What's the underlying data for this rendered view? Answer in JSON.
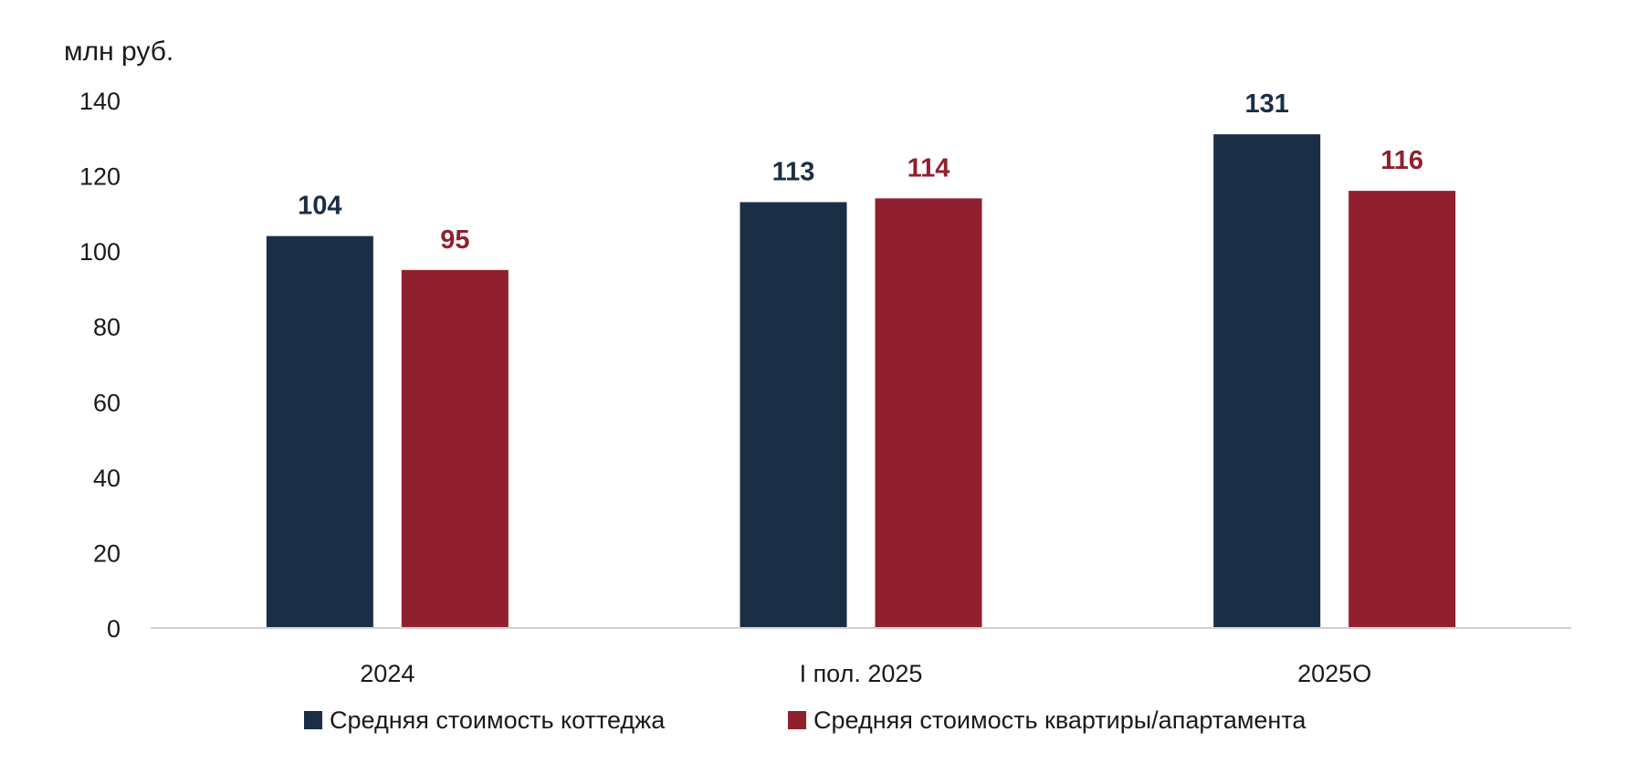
{
  "chart_data": {
    "type": "bar",
    "unit_label": "млн руб.",
    "categories": [
      "2024",
      "I пол. 2025",
      "2025О"
    ],
    "series": [
      {
        "name": "Средняя стоимость коттеджа",
        "color": "#1a2e45",
        "values": [
          104,
          113,
          131
        ]
      },
      {
        "name": "Средняя стоимость квартиры/апартамента",
        "color": "#91202e",
        "values": [
          95,
          114,
          116
        ]
      }
    ],
    "ylim": [
      0,
      140
    ],
    "yticks": [
      0,
      20,
      40,
      60,
      80,
      100,
      120,
      140
    ],
    "grid": false,
    "legend_position": "bottom"
  }
}
